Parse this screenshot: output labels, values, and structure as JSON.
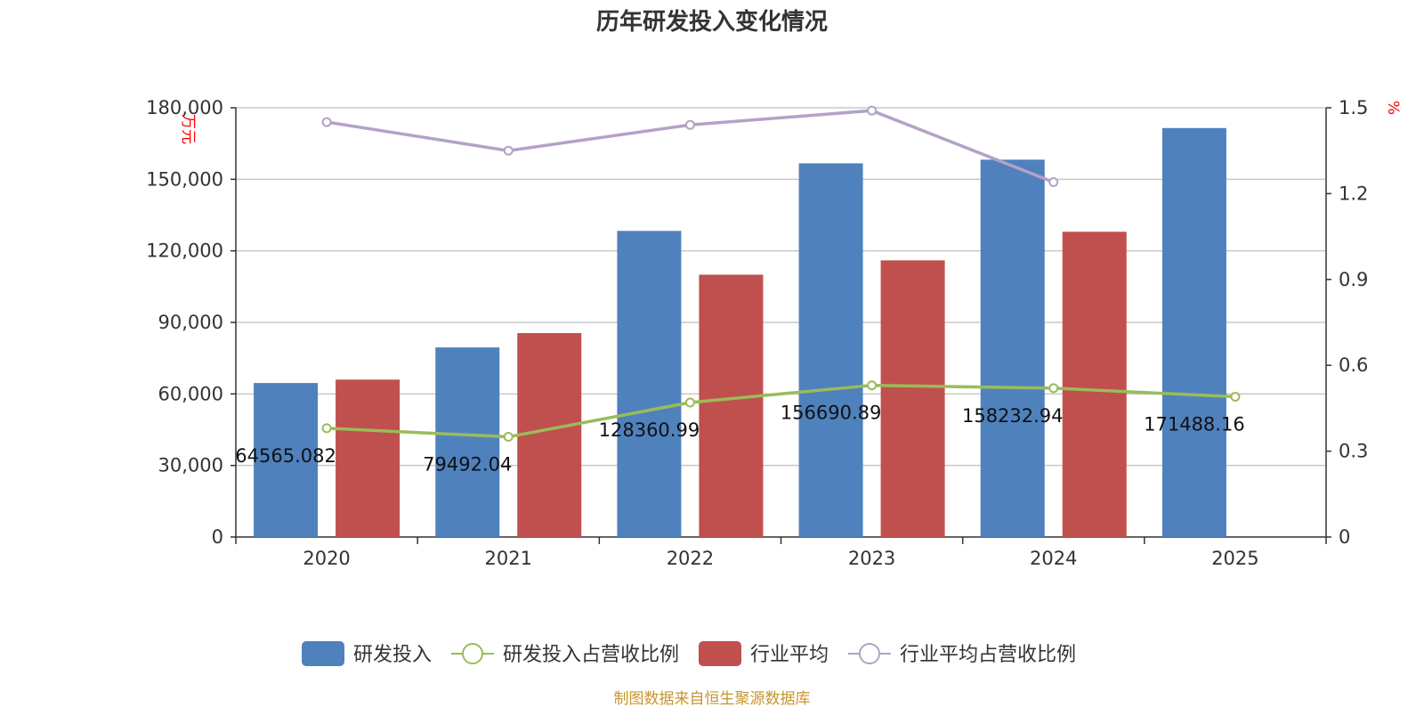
{
  "chart_data": {
    "type": "bar",
    "title": "历年研发投入变化情况",
    "categories": [
      "2020",
      "2021",
      "2022",
      "2023",
      "2024",
      "2025"
    ],
    "y_left": {
      "label": "万元",
      "ylim": [
        0,
        180000
      ],
      "ticks": [
        "0",
        "30,000",
        "60,000",
        "90,000",
        "120,000",
        "150,000",
        "180,000"
      ],
      "tick_values": [
        0,
        30000,
        60000,
        90000,
        120000,
        150000,
        180000
      ]
    },
    "y_right": {
      "label": "%",
      "ylim": [
        0,
        1.5
      ],
      "ticks": [
        "0",
        "0.3",
        "0.6",
        "0.9",
        "1.2",
        "1.5"
      ],
      "tick_values": [
        0,
        0.3,
        0.6,
        0.9,
        1.2,
        1.5
      ]
    },
    "series": [
      {
        "name": "研发投入",
        "type": "bar",
        "axis": "left",
        "color": "#4f81bd",
        "values": [
          64565.082,
          79492.04,
          128360.99,
          156690.89,
          158232.94,
          171488.16
        ],
        "labels": [
          "64565.082",
          "79492.04",
          "128360.99",
          "156690.89",
          "158232.94",
          "171488.16"
        ]
      },
      {
        "name": "研发投入占营收比例",
        "type": "line",
        "axis": "right",
        "color": "#9bbb59",
        "values": [
          0.38,
          0.35,
          0.47,
          0.53,
          0.52,
          0.49
        ]
      },
      {
        "name": "行业平均",
        "type": "bar",
        "axis": "left",
        "color": "#c0504d",
        "values": [
          66000,
          85500,
          110000,
          116000,
          128000,
          null
        ]
      },
      {
        "name": "行业平均占营收比例",
        "type": "line",
        "axis": "right",
        "color": "#b3a2c7",
        "values": [
          1.45,
          1.35,
          1.44,
          1.49,
          1.24,
          null
        ]
      }
    ],
    "legend_position": "bottom",
    "grid": true
  },
  "footer": {
    "source": "制图数据来自恒生聚源数据库"
  },
  "colors": {
    "title": "#333333",
    "axis_unit": "#ff0000",
    "source": "#c8952c",
    "grid": "#c8c8c8",
    "axis": "#333333"
  }
}
